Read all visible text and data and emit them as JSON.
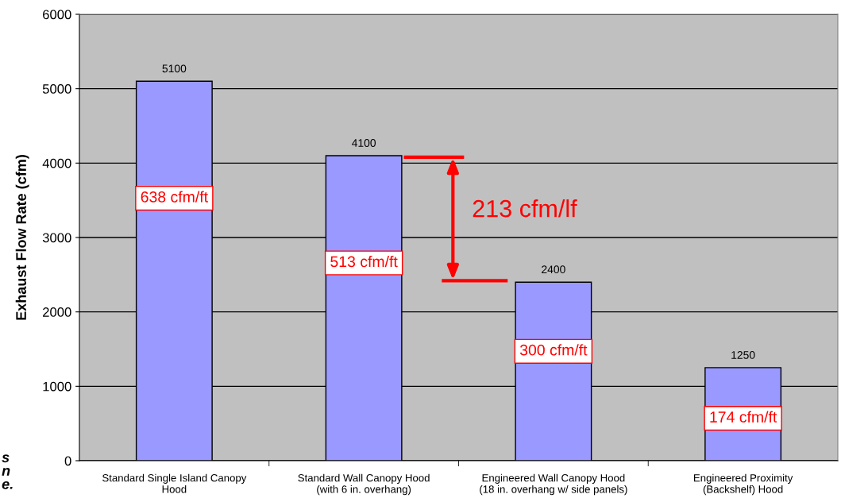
{
  "chart_data": {
    "type": "bar",
    "ylabel": "Exhaust Flow Rate (cfm)",
    "categories": [
      "Standard Single Island Canopy\nHood",
      "Standard Wall Canopy Hood\n(with 6 in. overhang)",
      "Engineered Wall Canopy Hood\n(18 in. overhang w/ side panels)",
      "Engineered Proximity\n(Backshelf) Hood"
    ],
    "values": [
      5100,
      4100,
      2400,
      1250
    ],
    "color": "#9999ff",
    "data_labels": true,
    "ylim": [
      0,
      6000
    ],
    "yticks": [
      0,
      1000,
      2000,
      3000,
      4000,
      5000,
      6000
    ],
    "grid": "y",
    "legend": false,
    "annotations": [
      "638 cfm/ft",
      "513 cfm/ft",
      "300 cfm/ft",
      "174 cfm/ft",
      "213 cfm/lf",
      "s\nn\ne."
    ]
  }
}
